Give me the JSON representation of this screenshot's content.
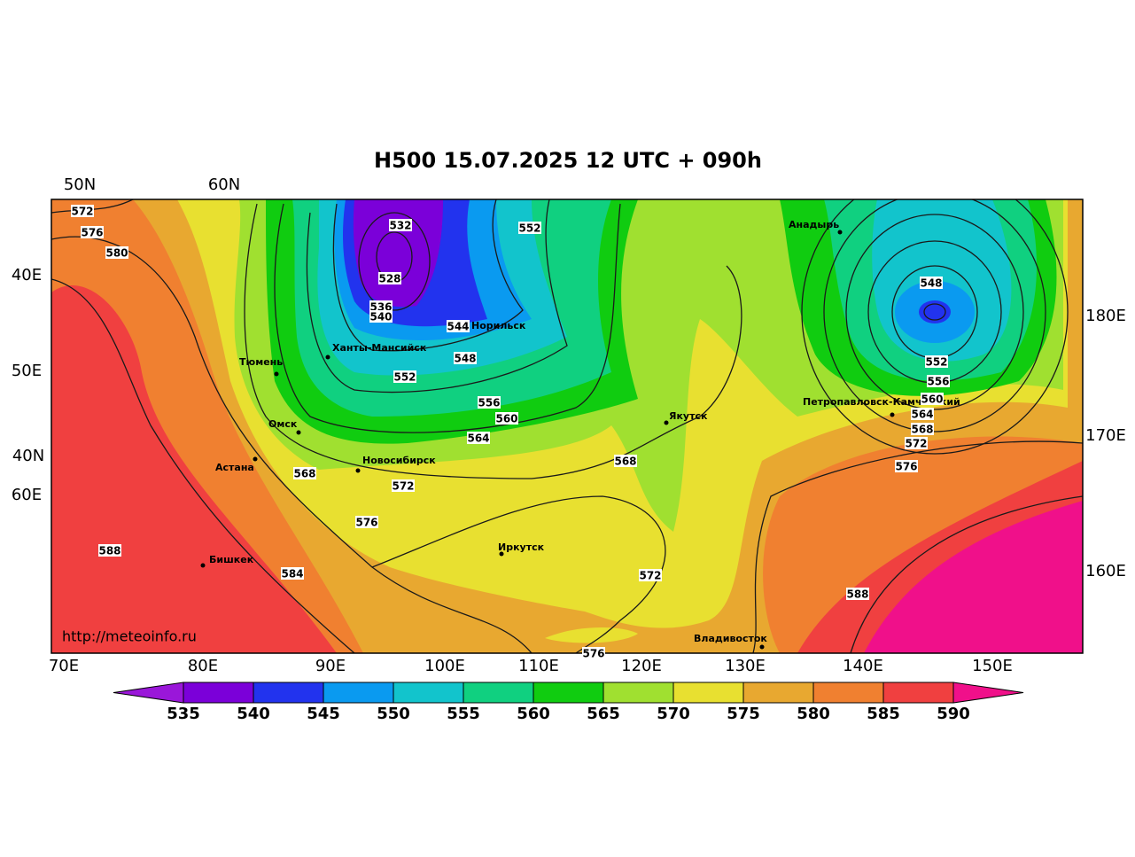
{
  "title": "H500  15.07.2025 12 UTC + 090h",
  "url": "http://meteoinfo.ru",
  "top_labels": [
    "50N",
    "60N"
  ],
  "left_labels": [
    "40E",
    "50E",
    "40N",
    "60E"
  ],
  "right_labels": [
    "180E",
    "170E",
    "160E"
  ],
  "bottom_labels": [
    "70E",
    "80E",
    "90E",
    "100E",
    "110E",
    "120E",
    "130E",
    "140E",
    "150E"
  ],
  "cities": [
    "Анадырь",
    "Норильск",
    "Ханты-Мансийск",
    "Тюмень",
    "Омск",
    "Астана",
    "Новосибирск",
    "Якутск",
    "Петропавловск-Камчатский",
    "Иркутск",
    "Бишкек",
    "Владивосток"
  ],
  "contour_labels": [
    572,
    576,
    580,
    532,
    528,
    536,
    540,
    544,
    548,
    552,
    552,
    556,
    560,
    564,
    568,
    572,
    576,
    584,
    588,
    568,
    548,
    552,
    556,
    560,
    564,
    568,
    572,
    576,
    572,
    588,
    576
  ],
  "colorbar": {
    "ticks": [
      535,
      540,
      545,
      550,
      555,
      560,
      565,
      570,
      575,
      580,
      585,
      590
    ],
    "colors": [
      "#9a17d9",
      "#7b00d9",
      "#2233ee",
      "#0a9af0",
      "#12c4cc",
      "#10d080",
      "#10cc10",
      "#a0e030",
      "#e8e030",
      "#e8a830",
      "#f08030",
      "#f04040",
      "#f0108a"
    ]
  }
}
